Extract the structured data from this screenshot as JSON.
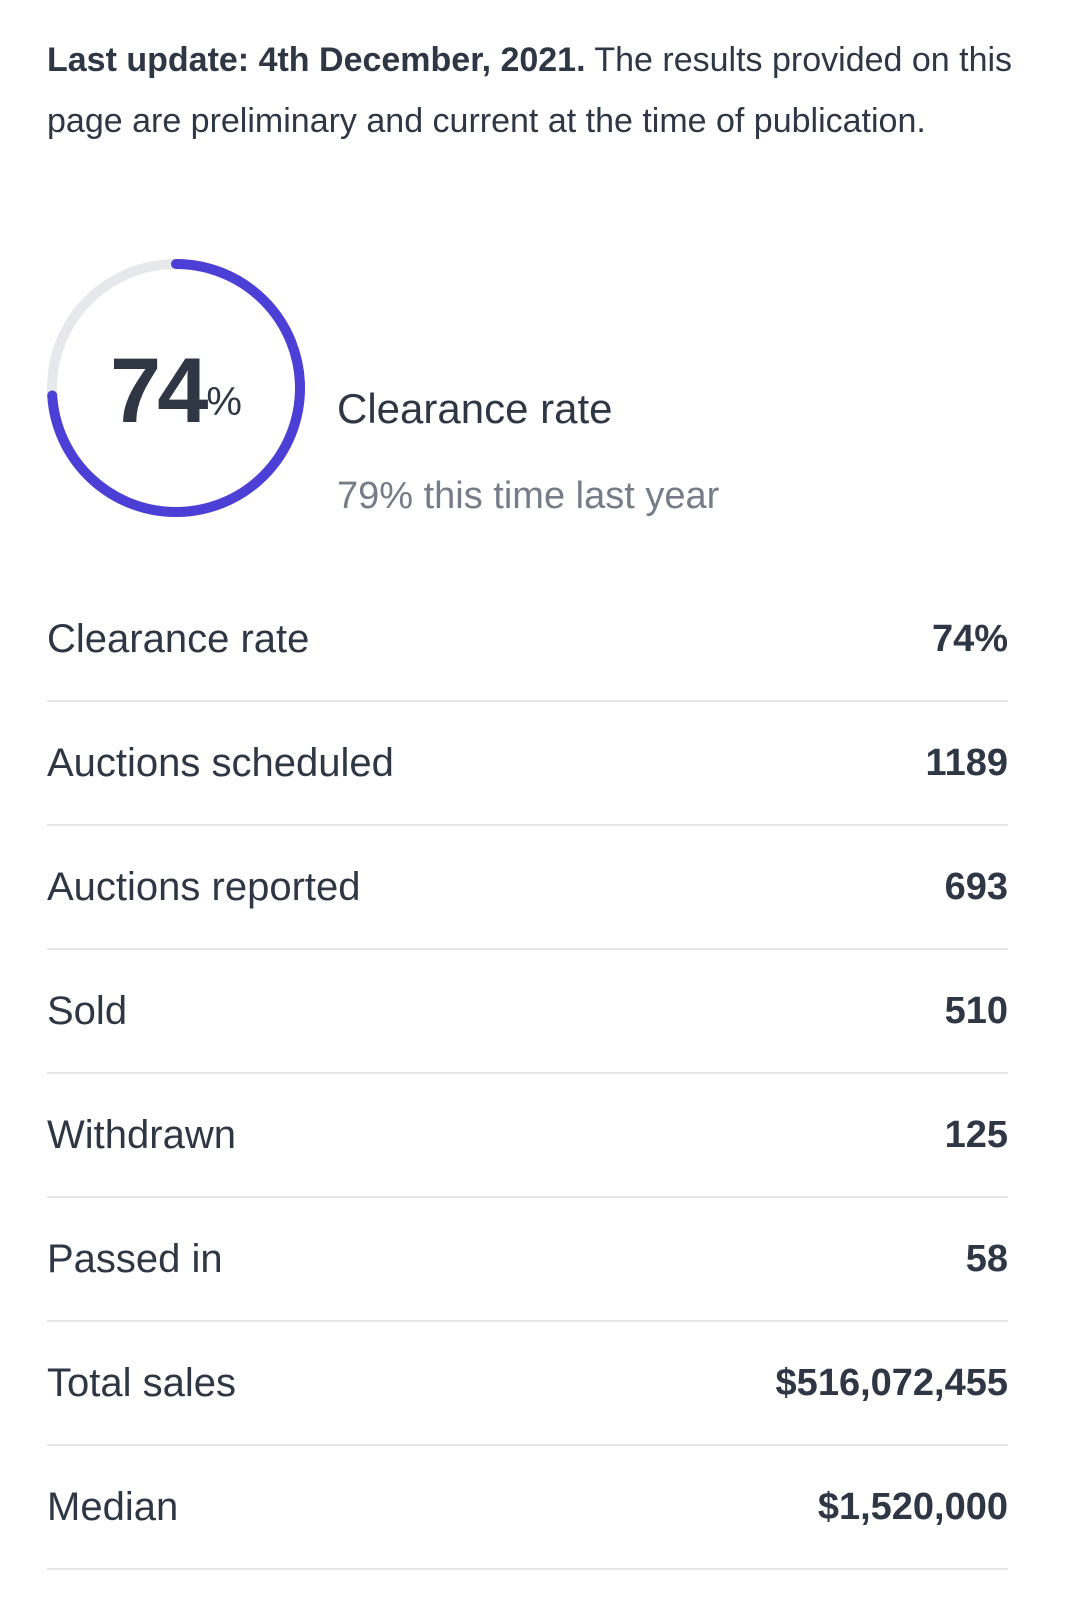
{
  "update_note": {
    "bold": "Last update: 4th December, 2021.",
    "text": " The results provided on this page are preliminary and current at the time of publication."
  },
  "ring": {
    "value": "74",
    "unit": "%",
    "fraction": 0.74,
    "accent_color": "#4b3fd6",
    "track_color": "#e6e8eb"
  },
  "summary": {
    "title": "Clearance rate",
    "subtitle": "79% this time last year"
  },
  "stats": [
    {
      "label": "Clearance rate",
      "value": "74%"
    },
    {
      "label": "Auctions scheduled",
      "value": "1189"
    },
    {
      "label": "Auctions reported",
      "value": "693"
    },
    {
      "label": "Sold",
      "value": "510"
    },
    {
      "label": "Withdrawn",
      "value": "125"
    },
    {
      "label": "Passed in",
      "value": "58"
    },
    {
      "label": "Total sales",
      "value": "$516,072,455"
    },
    {
      "label": "Median",
      "value": "$1,520,000"
    }
  ]
}
